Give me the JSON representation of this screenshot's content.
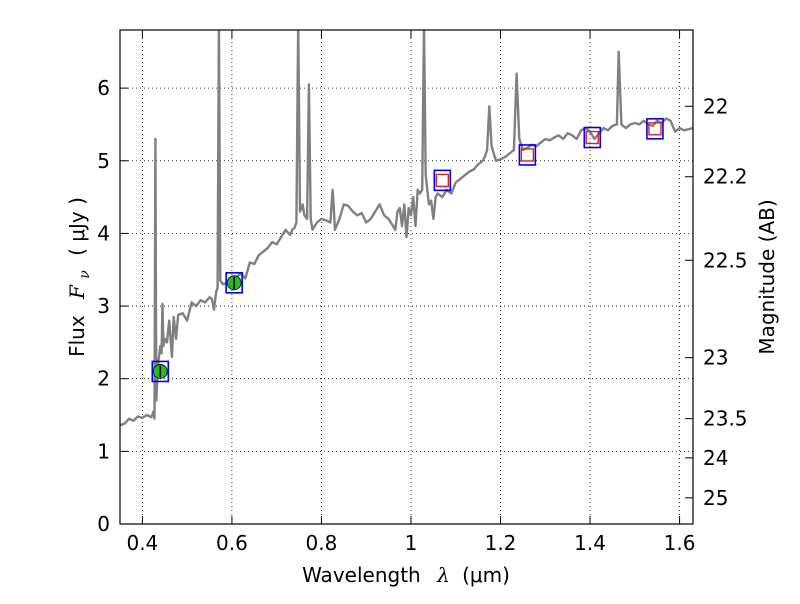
{
  "chart_data": {
    "type": "line",
    "title": "",
    "xlabel": {
      "prefix": "Wavelength",
      "symbol": "λ",
      "unit": "(μm)"
    },
    "ylabel": {
      "prefix": "Flux",
      "symbol": "F",
      "subscript": "ν",
      "unit": "( μJy )"
    },
    "y2label": "Magnitude (AB)",
    "xlim": [
      0.35,
      1.63
    ],
    "ylim": [
      0,
      6.8
    ],
    "grid": true,
    "grid_style": "dotted",
    "xticks": [
      0.4,
      0.6,
      0.8,
      1.0,
      1.2,
      1.4,
      1.6
    ],
    "xtick_labels": [
      "0.4",
      "0.6",
      "0.8",
      "1",
      "1.2",
      "1.4",
      "1.6"
    ],
    "yticks": [
      0,
      1,
      2,
      3,
      4,
      5,
      6
    ],
    "ytick_labels": [
      "0",
      "1",
      "2",
      "3",
      "4",
      "5",
      "6"
    ],
    "y2ticks": [
      {
        "label": "22",
        "flux": 5.75
      },
      {
        "label": "22.2",
        "flux": 4.78
      },
      {
        "label": "22.5",
        "flux": 3.63
      },
      {
        "label": "23",
        "flux": 2.29
      },
      {
        "label": "23.5",
        "flux": 1.45
      },
      {
        "label": "24",
        "flux": 0.91
      },
      {
        "label": "25",
        "flux": 0.36
      }
    ],
    "colors": {
      "spectrum": "#808080",
      "observed_marker": "#22bb22",
      "model_box": "#0000ee",
      "upper_limit": "#dd2222"
    },
    "spectrum": [
      [
        0.35,
        1.36
      ],
      [
        0.36,
        1.38
      ],
      [
        0.37,
        1.45
      ],
      [
        0.38,
        1.42
      ],
      [
        0.39,
        1.48
      ],
      [
        0.4,
        1.46
      ],
      [
        0.41,
        1.5
      ],
      [
        0.42,
        1.47
      ],
      [
        0.425,
        1.55
      ],
      [
        0.427,
        1.45
      ],
      [
        0.429,
        5.3
      ],
      [
        0.431,
        1.7
      ],
      [
        0.433,
        1.95
      ],
      [
        0.436,
        2.25
      ],
      [
        0.44,
        2.45
      ],
      [
        0.443,
        2.35
      ],
      [
        0.445,
        3.03
      ],
      [
        0.447,
        2.45
      ],
      [
        0.45,
        2.55
      ],
      [
        0.455,
        2.5
      ],
      [
        0.46,
        2.8
      ],
      [
        0.463,
        2.55
      ],
      [
        0.466,
        2.3
      ],
      [
        0.47,
        2.85
      ],
      [
        0.475,
        2.55
      ],
      [
        0.48,
        2.88
      ],
      [
        0.49,
        2.9
      ],
      [
        0.5,
        2.8
      ],
      [
        0.51,
        3.05
      ],
      [
        0.52,
        3.0
      ],
      [
        0.53,
        3.08
      ],
      [
        0.54,
        3.05
      ],
      [
        0.55,
        3.12
      ],
      [
        0.555,
        3.1
      ],
      [
        0.56,
        2.95
      ],
      [
        0.565,
        3.2
      ],
      [
        0.568,
        3.25
      ],
      [
        0.571,
        6.9
      ],
      [
        0.574,
        3.35
      ],
      [
        0.58,
        3.3
      ],
      [
        0.59,
        3.32
      ],
      [
        0.6,
        3.35
      ],
      [
        0.61,
        3.4
      ],
      [
        0.62,
        3.45
      ],
      [
        0.63,
        3.38
      ],
      [
        0.64,
        3.6
      ],
      [
        0.65,
        3.58
      ],
      [
        0.66,
        3.7
      ],
      [
        0.67,
        3.75
      ],
      [
        0.68,
        3.8
      ],
      [
        0.69,
        3.88
      ],
      [
        0.7,
        3.85
      ],
      [
        0.71,
        3.95
      ],
      [
        0.72,
        4.05
      ],
      [
        0.73,
        3.98
      ],
      [
        0.735,
        4.05
      ],
      [
        0.74,
        4.08
      ],
      [
        0.744,
        4.15
      ],
      [
        0.748,
        6.9
      ],
      [
        0.752,
        4.3
      ],
      [
        0.758,
        4.4
      ],
      [
        0.762,
        4.25
      ],
      [
        0.768,
        4.2
      ],
      [
        0.772,
        6.05
      ],
      [
        0.776,
        4.2
      ],
      [
        0.78,
        4.05
      ],
      [
        0.79,
        4.15
      ],
      [
        0.8,
        4.2
      ],
      [
        0.81,
        4.18
      ],
      [
        0.82,
        4.15
      ],
      [
        0.825,
        4.6
      ],
      [
        0.828,
        4.3
      ],
      [
        0.83,
        4.05
      ],
      [
        0.84,
        4.2
      ],
      [
        0.85,
        4.4
      ],
      [
        0.86,
        4.38
      ],
      [
        0.87,
        4.3
      ],
      [
        0.88,
        4.25
      ],
      [
        0.89,
        4.28
      ],
      [
        0.9,
        4.15
      ],
      [
        0.91,
        4.2
      ],
      [
        0.92,
        4.3
      ],
      [
        0.93,
        4.4
      ],
      [
        0.94,
        4.25
      ],
      [
        0.95,
        4.2
      ],
      [
        0.96,
        4.1
      ],
      [
        0.965,
        4.05
      ],
      [
        0.97,
        4.3
      ],
      [
        0.975,
        4.35
      ],
      [
        0.98,
        4.1
      ],
      [
        0.985,
        4.4
      ],
      [
        0.99,
        3.95
      ],
      [
        0.995,
        4.35
      ],
      [
        1.0,
        4.25
      ],
      [
        1.005,
        4.5
      ],
      [
        1.01,
        4.1
      ],
      [
        1.015,
        4.6
      ],
      [
        1.02,
        4.55
      ],
      [
        1.025,
        4.6
      ],
      [
        1.029,
        6.9
      ],
      [
        1.033,
        4.8
      ],
      [
        1.04,
        4.4
      ],
      [
        1.045,
        4.45
      ],
      [
        1.05,
        4.2
      ],
      [
        1.055,
        4.5
      ],
      [
        1.06,
        4.55
      ],
      [
        1.07,
        4.5
      ],
      [
        1.08,
        4.6
      ],
      [
        1.09,
        4.55
      ],
      [
        1.1,
        4.7
      ],
      [
        1.11,
        4.75
      ],
      [
        1.12,
        4.8
      ],
      [
        1.13,
        4.85
      ],
      [
        1.14,
        4.88
      ],
      [
        1.15,
        4.95
      ],
      [
        1.16,
        5.0
      ],
      [
        1.165,
        5.05
      ],
      [
        1.17,
        5.15
      ],
      [
        1.175,
        5.75
      ],
      [
        1.18,
        5.2
      ],
      [
        1.19,
        5.0
      ],
      [
        1.2,
        5.02
      ],
      [
        1.21,
        5.05
      ],
      [
        1.22,
        5.1
      ],
      [
        1.23,
        5.15
      ],
      [
        1.236,
        6.2
      ],
      [
        1.242,
        5.3
      ],
      [
        1.25,
        5.15
      ],
      [
        1.26,
        5.18
      ],
      [
        1.27,
        5.22
      ],
      [
        1.28,
        5.2
      ],
      [
        1.29,
        5.25
      ],
      [
        1.3,
        5.3
      ],
      [
        1.31,
        5.28
      ],
      [
        1.32,
        5.32
      ],
      [
        1.33,
        5.35
      ],
      [
        1.34,
        5.3
      ],
      [
        1.35,
        5.38
      ],
      [
        1.36,
        5.35
      ],
      [
        1.37,
        5.3
      ],
      [
        1.38,
        5.42
      ],
      [
        1.39,
        5.45
      ],
      [
        1.4,
        5.4
      ],
      [
        1.41,
        5.3
      ],
      [
        1.42,
        5.38
      ],
      [
        1.43,
        5.45
      ],
      [
        1.44,
        5.42
      ],
      [
        1.45,
        5.48
      ],
      [
        1.46,
        5.5
      ],
      [
        1.464,
        6.5
      ],
      [
        1.47,
        5.5
      ],
      [
        1.48,
        5.45
      ],
      [
        1.49,
        5.5
      ],
      [
        1.5,
        5.52
      ],
      [
        1.51,
        5.5
      ],
      [
        1.52,
        5.55
      ],
      [
        1.53,
        5.5
      ],
      [
        1.54,
        5.48
      ],
      [
        1.55,
        5.55
      ],
      [
        1.56,
        5.52
      ],
      [
        1.57,
        5.58
      ],
      [
        1.58,
        5.55
      ],
      [
        1.59,
        5.4
      ],
      [
        1.6,
        5.45
      ],
      [
        1.61,
        5.42
      ],
      [
        1.63,
        5.45
      ]
    ],
    "photometry": [
      {
        "x": 0.44,
        "y": 2.1,
        "observed": true
      },
      {
        "x": 0.605,
        "y": 3.32,
        "observed": true
      },
      {
        "x": 1.07,
        "y": 4.73,
        "observed": false
      },
      {
        "x": 1.26,
        "y": 5.08,
        "observed": false
      },
      {
        "x": 1.405,
        "y": 5.32,
        "observed": false
      },
      {
        "x": 1.545,
        "y": 5.44,
        "observed": false
      }
    ]
  }
}
